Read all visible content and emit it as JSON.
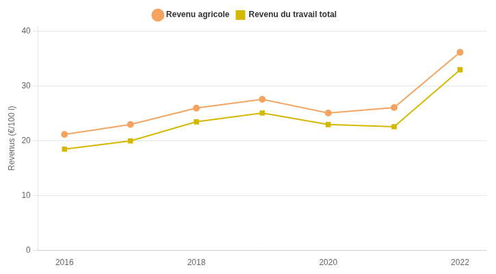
{
  "chart_data": {
    "type": "line",
    "ylabel": "Revenus (€/100 l)",
    "x": [
      2016,
      2017,
      2018,
      2019,
      2020,
      2021,
      2022
    ],
    "series": [
      {
        "name": "Revenu agricole",
        "color": "#F4A460",
        "marker": "circle",
        "values": [
          21.2,
          23.0,
          26.0,
          27.6,
          25.1,
          26.1,
          36.2
        ]
      },
      {
        "name": "Revenu du travail total",
        "color": "#D4B800",
        "marker": "square",
        "values": [
          18.5,
          20.0,
          23.5,
          25.1,
          23.0,
          22.6,
          33.0
        ]
      }
    ],
    "xlim": [
      2015.6,
      2022.4
    ],
    "xticks": [
      2016,
      2018,
      2020,
      2022
    ],
    "ylim": [
      0,
      41
    ],
    "yticks": [
      0,
      10,
      20,
      30,
      40
    ],
    "grid": "y",
    "legend": "top"
  }
}
